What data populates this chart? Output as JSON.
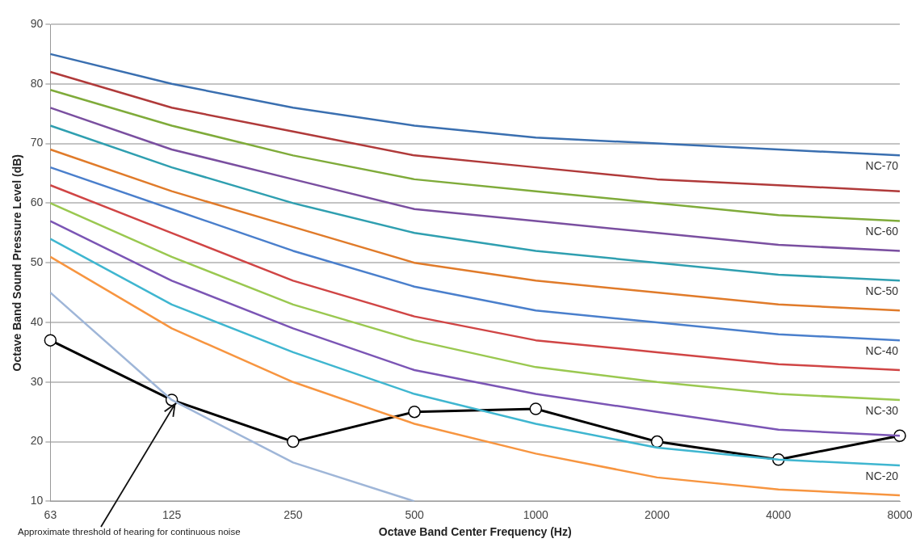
{
  "chart_data": {
    "type": "line",
    "xlabel": "Octave Band Center Frequency (Hz)",
    "ylabel": "Octave Band Sound Pressure Level (dB)",
    "categories": [
      "63",
      "125",
      "250",
      "500",
      "1000",
      "2000",
      "4000",
      "8000"
    ],
    "ylim": [
      10,
      90
    ],
    "yticks": [
      10,
      20,
      30,
      40,
      50,
      60,
      70,
      80,
      90
    ],
    "grid": "y",
    "legend": false,
    "marker": "none",
    "line_style": "solid",
    "series": [
      {
        "name": "NC-70",
        "color": "#3a6fb0",
        "values": [
          85,
          80,
          76,
          73,
          71,
          70,
          69,
          68
        ]
      },
      {
        "color": "#b03a3a",
        "values": [
          82,
          76,
          72,
          68,
          66,
          64,
          63,
          62
        ]
      },
      {
        "name": "NC-60",
        "color": "#7fab3a",
        "values": [
          79,
          73,
          68,
          64,
          62,
          60,
          58,
          57
        ]
      },
      {
        "color": "#7a4fa0",
        "values": [
          76,
          69,
          64,
          59,
          57,
          55,
          53,
          52
        ]
      },
      {
        "name": "NC-50",
        "color": "#2f9fb0",
        "values": [
          73,
          66,
          60,
          55,
          52,
          50,
          48,
          47
        ]
      },
      {
        "color": "#e07b2a",
        "values": [
          69,
          62,
          56,
          50,
          47,
          45,
          43,
          42
        ]
      },
      {
        "name": "NC-40",
        "color": "#4a7fcc",
        "values": [
          66,
          59,
          52,
          46,
          42,
          40,
          38,
          37
        ]
      },
      {
        "color": "#d04545",
        "values": [
          63,
          55,
          47,
          41,
          37,
          35,
          33,
          32
        ]
      },
      {
        "name": "NC-30",
        "color": "#9ac850",
        "values": [
          60,
          51,
          43,
          37,
          32.5,
          30,
          28,
          27
        ]
      },
      {
        "color": "#7b55b5",
        "values": [
          57,
          47,
          39,
          32,
          28,
          25,
          22,
          21
        ]
      },
      {
        "name": "NC-20",
        "color": "#3fb6d0",
        "values": [
          54,
          43,
          35,
          28,
          23,
          19,
          17,
          16
        ]
      },
      {
        "color": "#f79540",
        "values": [
          51,
          39,
          30,
          23,
          18,
          14,
          12,
          11
        ]
      },
      {
        "color": "#9fb6d8",
        "values": [
          45,
          27,
          16.5,
          10,
          null,
          null,
          null,
          null
        ]
      },
      {
        "color": "#000000",
        "marker": "circle",
        "values": [
          37,
          27,
          20,
          25,
          25.5,
          20,
          17,
          21
        ]
      }
    ],
    "annotations": [
      {
        "text": "Approximate threshold of hearing for continuous noise",
        "x": "125",
        "y": 27
      }
    ]
  }
}
